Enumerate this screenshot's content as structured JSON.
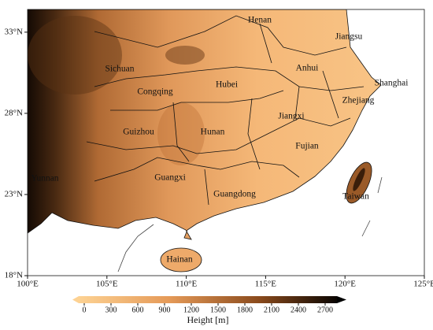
{
  "map": {
    "xlim": [
      100,
      125
    ],
    "ylim": [
      18,
      34.4
    ],
    "xticks": [
      {
        "value": 100,
        "label": "100°E"
      },
      {
        "value": 105,
        "label": "105°E"
      },
      {
        "value": 110,
        "label": "110°E"
      },
      {
        "value": 115,
        "label": "115°E"
      },
      {
        "value": 120,
        "label": "120°E"
      },
      {
        "value": 125,
        "label": "125°E"
      }
    ],
    "yticks": [
      {
        "value": 18,
        "label": "18°N"
      },
      {
        "value": 23,
        "label": "23°N"
      },
      {
        "value": 28,
        "label": "28°N"
      },
      {
        "value": 33,
        "label": "33°N"
      }
    ],
    "regions": [
      "Henan",
      "Jiangsu",
      "Sichuan",
      "Anhui",
      "Shanghai",
      "Hubei",
      "Congqing",
      "Zhejiang",
      "Jiangxi",
      "Guizhou",
      "Hunan",
      "Fujian",
      "Yunnan",
      "Guangxi",
      "Taiwan",
      "Guangdong",
      "Hainan"
    ]
  },
  "colorbar": {
    "label": "Height [m]",
    "ticks": [
      0,
      300,
      600,
      900,
      1200,
      1500,
      1800,
      2100,
      2400,
      2700
    ]
  }
}
